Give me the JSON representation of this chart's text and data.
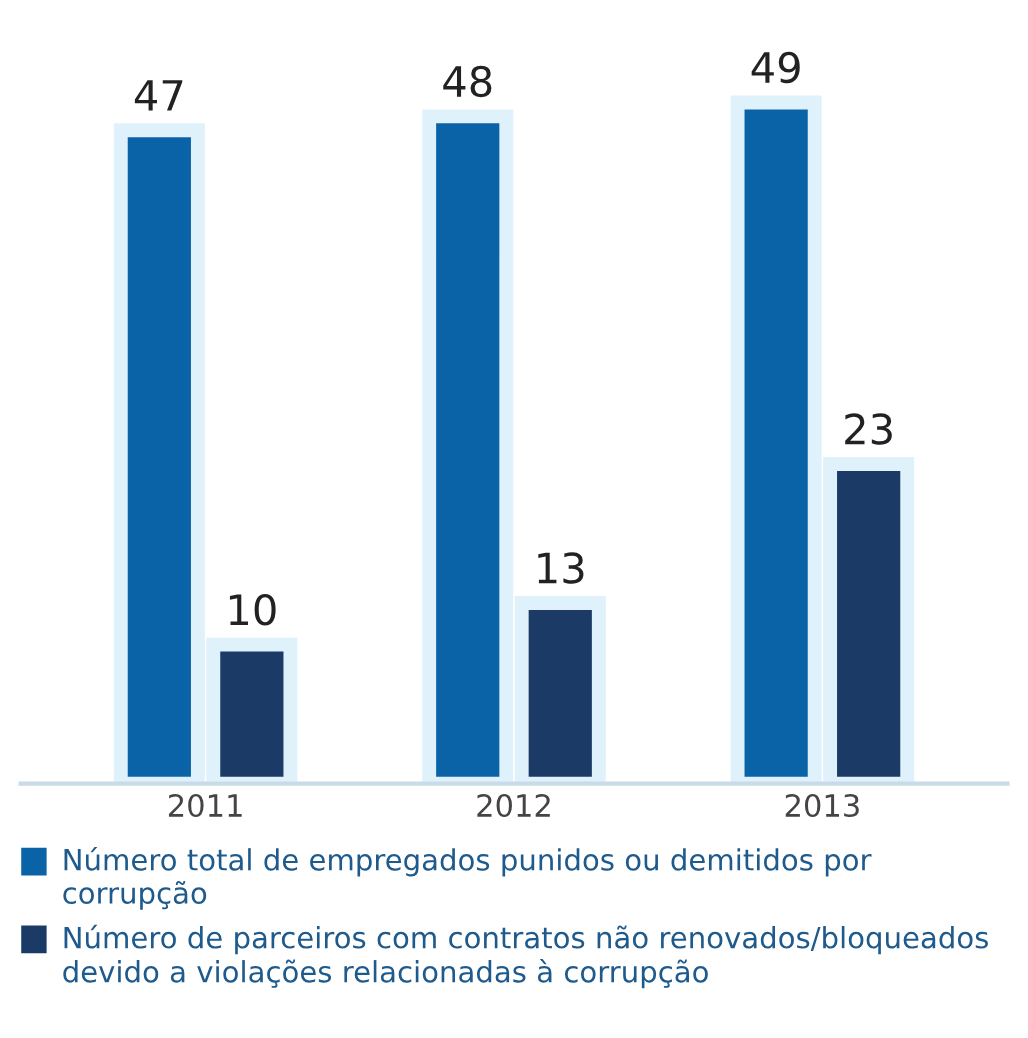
{
  "chart_data": {
    "type": "bar",
    "categories": [
      "2011",
      "2012",
      "2013"
    ],
    "series": [
      {
        "name": "Número total de empregados punidos ou demitidos por corrupção",
        "color": "#0a63a6",
        "values": [
          47,
          48,
          49
        ]
      },
      {
        "name": "Número de parceiros com contratos não renovados/bloqueados devido a violações relacionadas à corrupção",
        "color": "#1b3a66",
        "values": [
          10,
          13,
          23
        ]
      }
    ],
    "data_labels": true,
    "legend": "bottom",
    "tick_labels": "x"
  }
}
